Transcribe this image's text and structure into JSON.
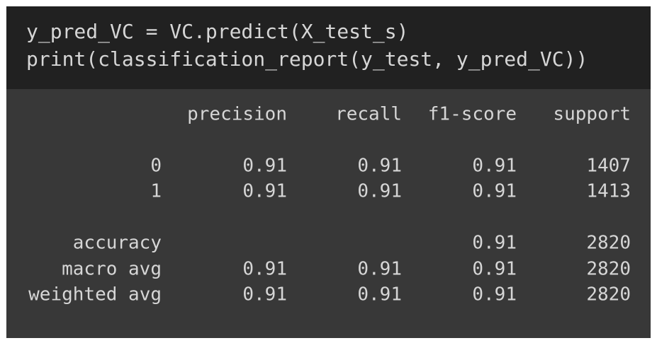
{
  "code": {
    "lines": [
      "y_pred_VC = VC.predict(X_test_s)",
      "print(classification_report(y_test, y_pred_VC))"
    ]
  },
  "output": {
    "header": [
      "precision",
      "recall",
      "f1-score",
      "support"
    ],
    "rows": [
      {
        "label": "0",
        "cells": [
          "0.91",
          "0.91",
          "0.91",
          "1407"
        ]
      },
      {
        "label": "1",
        "cells": [
          "0.91",
          "0.91",
          "0.91",
          "1413"
        ]
      },
      {
        "label": "accuracy",
        "cells": [
          null,
          null,
          "0.91",
          "2820"
        ]
      },
      {
        "label": "macro avg",
        "cells": [
          "0.91",
          "0.91",
          "0.91",
          "2820"
        ]
      },
      {
        "label": "weighted avg",
        "cells": [
          "0.91",
          "0.91",
          "0.91",
          "2820"
        ]
      }
    ]
  }
}
